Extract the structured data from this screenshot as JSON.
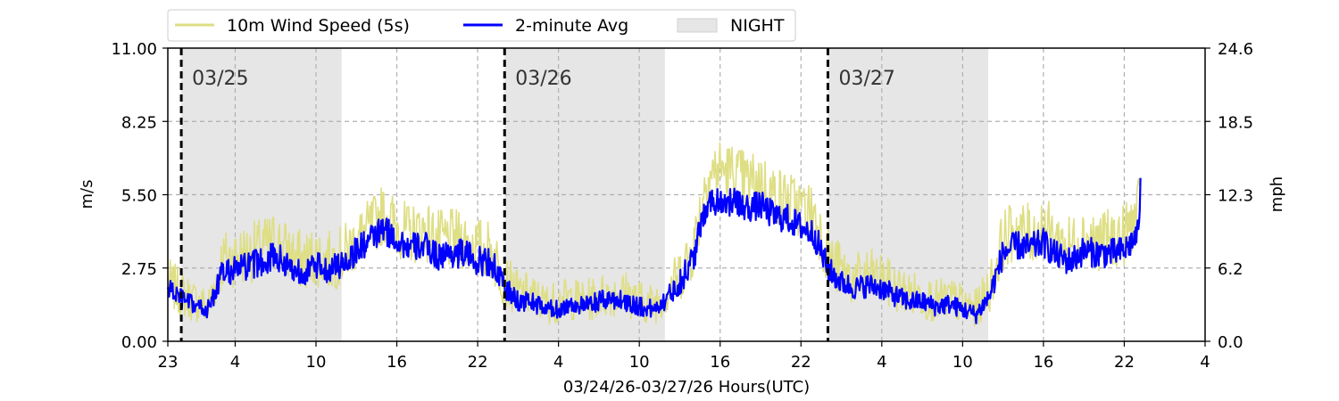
{
  "chart_data": {
    "type": "line",
    "title": "",
    "xlabel": "03/24/26-03/27/26  Hours(UTC)",
    "ylabel": "m/s",
    "ylabel_right": "mph",
    "x_unit": "hours since 03/24/26 23:00 UTC",
    "xlim": [
      0,
      77
    ],
    "ylim": [
      0,
      11
    ],
    "x_ticks": [
      0,
      5,
      11,
      17,
      23,
      29,
      35,
      41,
      47,
      53,
      59,
      65,
      71,
      77
    ],
    "x_tick_labels": [
      "23",
      "4",
      "10",
      "16",
      "22",
      "4",
      "10",
      "16",
      "22",
      "4",
      "10",
      "16",
      "22",
      "4"
    ],
    "y_ticks": [
      0,
      2.75,
      5.5,
      8.25,
      11
    ],
    "y_tick_labels": [
      "0.00",
      "2.75",
      "5.50",
      "8.25",
      "11.00"
    ],
    "y2_tick_labels": [
      "0.0",
      "6.2",
      "12.3",
      "18.5",
      "24.6"
    ],
    "grid": true,
    "legend_position": "top-left, above plot",
    "legend": [
      "10m Wind Speed (5s)",
      "2-minute Avg",
      "NIGHT"
    ],
    "night_shading": [
      [
        1.0,
        12.9
      ],
      [
        25.0,
        36.9
      ],
      [
        49.0,
        60.9
      ]
    ],
    "day_boundaries": [
      {
        "x": 1.0,
        "label": "03/25"
      },
      {
        "x": 25.0,
        "label": "03/26"
      },
      {
        "x": 49.0,
        "label": "03/27"
      }
    ],
    "series": [
      {
        "name": "10m Wind Speed (5s)",
        "color": "#dede84",
        "x": [
          0,
          1,
          2,
          3,
          4,
          5,
          6,
          7,
          8,
          9,
          10,
          11,
          12,
          13,
          14,
          15,
          16,
          17,
          18,
          19,
          20,
          21,
          22,
          23,
          24,
          25,
          26,
          27,
          28,
          29,
          30,
          31,
          32,
          33,
          34,
          35,
          36,
          37,
          38,
          39,
          40,
          41,
          42,
          43,
          44,
          45,
          46,
          47,
          48,
          49,
          50,
          51,
          52,
          53,
          54,
          55,
          56,
          57,
          58,
          59,
          60,
          61,
          62,
          63,
          64,
          65,
          66,
          67,
          68,
          69,
          70,
          71,
          72,
          72.2
        ],
        "y": [
          2.2,
          1.8,
          1.5,
          1.3,
          3.0,
          3.2,
          3.3,
          3.5,
          3.8,
          3.3,
          3.0,
          3.2,
          3.0,
          3.2,
          3.8,
          4.2,
          4.8,
          4.3,
          4.0,
          4.2,
          3.8,
          3.8,
          3.8,
          3.5,
          3.4,
          2.3,
          1.8,
          1.7,
          1.4,
          1.5,
          1.6,
          1.5,
          1.7,
          1.8,
          1.8,
          1.5,
          1.4,
          1.8,
          2.5,
          3.5,
          6.2,
          6.5,
          6.3,
          6.0,
          6.0,
          5.5,
          5.3,
          5.0,
          4.8,
          3.2,
          2.6,
          2.3,
          2.5,
          2.3,
          2.0,
          1.8,
          1.7,
          1.5,
          1.6,
          1.4,
          1.2,
          2.0,
          3.8,
          4.2,
          4.0,
          4.3,
          3.8,
          3.6,
          4.0,
          3.8,
          3.8,
          4.0,
          4.8,
          5.3
        ]
      },
      {
        "name": "2-minute Avg",
        "color": "#0000ff",
        "x": [
          0,
          1,
          2,
          3,
          4,
          5,
          6,
          7,
          8,
          9,
          10,
          11,
          12,
          13,
          14,
          15,
          16,
          17,
          18,
          19,
          20,
          21,
          22,
          23,
          24,
          25,
          26,
          27,
          28,
          29,
          30,
          31,
          32,
          33,
          34,
          35,
          36,
          37,
          38,
          39,
          40,
          41,
          42,
          43,
          44,
          45,
          46,
          47,
          48,
          49,
          50,
          51,
          52,
          53,
          54,
          55,
          56,
          57,
          58,
          59,
          60,
          61,
          62,
          63,
          64,
          65,
          66,
          67,
          68,
          69,
          70,
          71,
          72,
          72.2
        ],
        "y": [
          2.0,
          1.6,
          1.3,
          1.2,
          2.5,
          2.7,
          2.8,
          3.0,
          3.2,
          2.8,
          2.6,
          2.8,
          2.7,
          2.9,
          3.4,
          3.8,
          4.2,
          3.8,
          3.5,
          3.6,
          3.2,
          3.3,
          3.3,
          3.0,
          3.0,
          2.0,
          1.5,
          1.5,
          1.2,
          1.2,
          1.4,
          1.3,
          1.5,
          1.6,
          1.5,
          1.3,
          1.2,
          1.6,
          2.2,
          3.1,
          5.2,
          5.3,
          5.2,
          5.0,
          5.1,
          4.7,
          4.6,
          4.3,
          4.0,
          2.7,
          2.2,
          2.0,
          2.1,
          2.0,
          1.7,
          1.5,
          1.5,
          1.3,
          1.4,
          1.2,
          1.0,
          1.7,
          3.3,
          3.6,
          3.5,
          3.7,
          3.2,
          3.0,
          3.4,
          3.3,
          3.3,
          3.4,
          4.0,
          5.7
        ]
      }
    ]
  }
}
